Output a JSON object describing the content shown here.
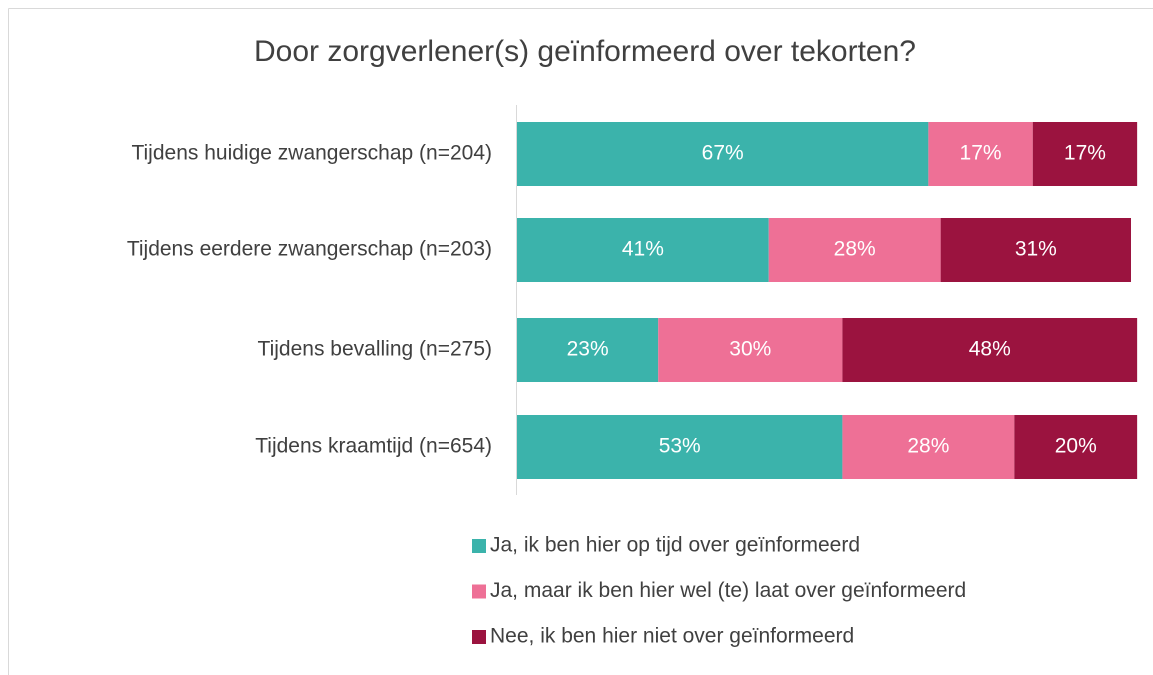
{
  "chart_data": {
    "type": "bar",
    "orientation": "horizontal",
    "stacked": true,
    "title": "Door zorgverlener(s) geïnformeerd over tekorten?",
    "categories": [
      "Tijdens huidige zwangerschap (n=204)",
      "Tijdens eerdere zwangerschap (n=203)",
      "Tijdens bevalling (n=275)",
      "Tijdens kraamtijd (n=654)"
    ],
    "series": [
      {
        "name": "Ja, ik ben hier op tijd over geïnformeerd",
        "color": "#3bb3ab",
        "values": [
          67,
          41,
          23,
          53
        ],
        "value_labels": [
          "67%",
          "41%",
          "23%",
          "53%"
        ]
      },
      {
        "name": "Ja, maar ik ben hier wel (te) laat over geïnformeerd",
        "color": "#ee7096",
        "values": [
          17,
          28,
          30,
          28
        ],
        "value_labels": [
          "17%",
          "28%",
          "30%",
          "28%"
        ]
      },
      {
        "name": "Nee, ik ben hier niet over geïnformeerd",
        "color": "#9b133f",
        "values": [
          17,
          31,
          48,
          20
        ],
        "value_labels": [
          "17%",
          "31%",
          "48%",
          "20%"
        ]
      }
    ],
    "xlim": [
      0,
      100
    ],
    "legend": "bottom"
  }
}
